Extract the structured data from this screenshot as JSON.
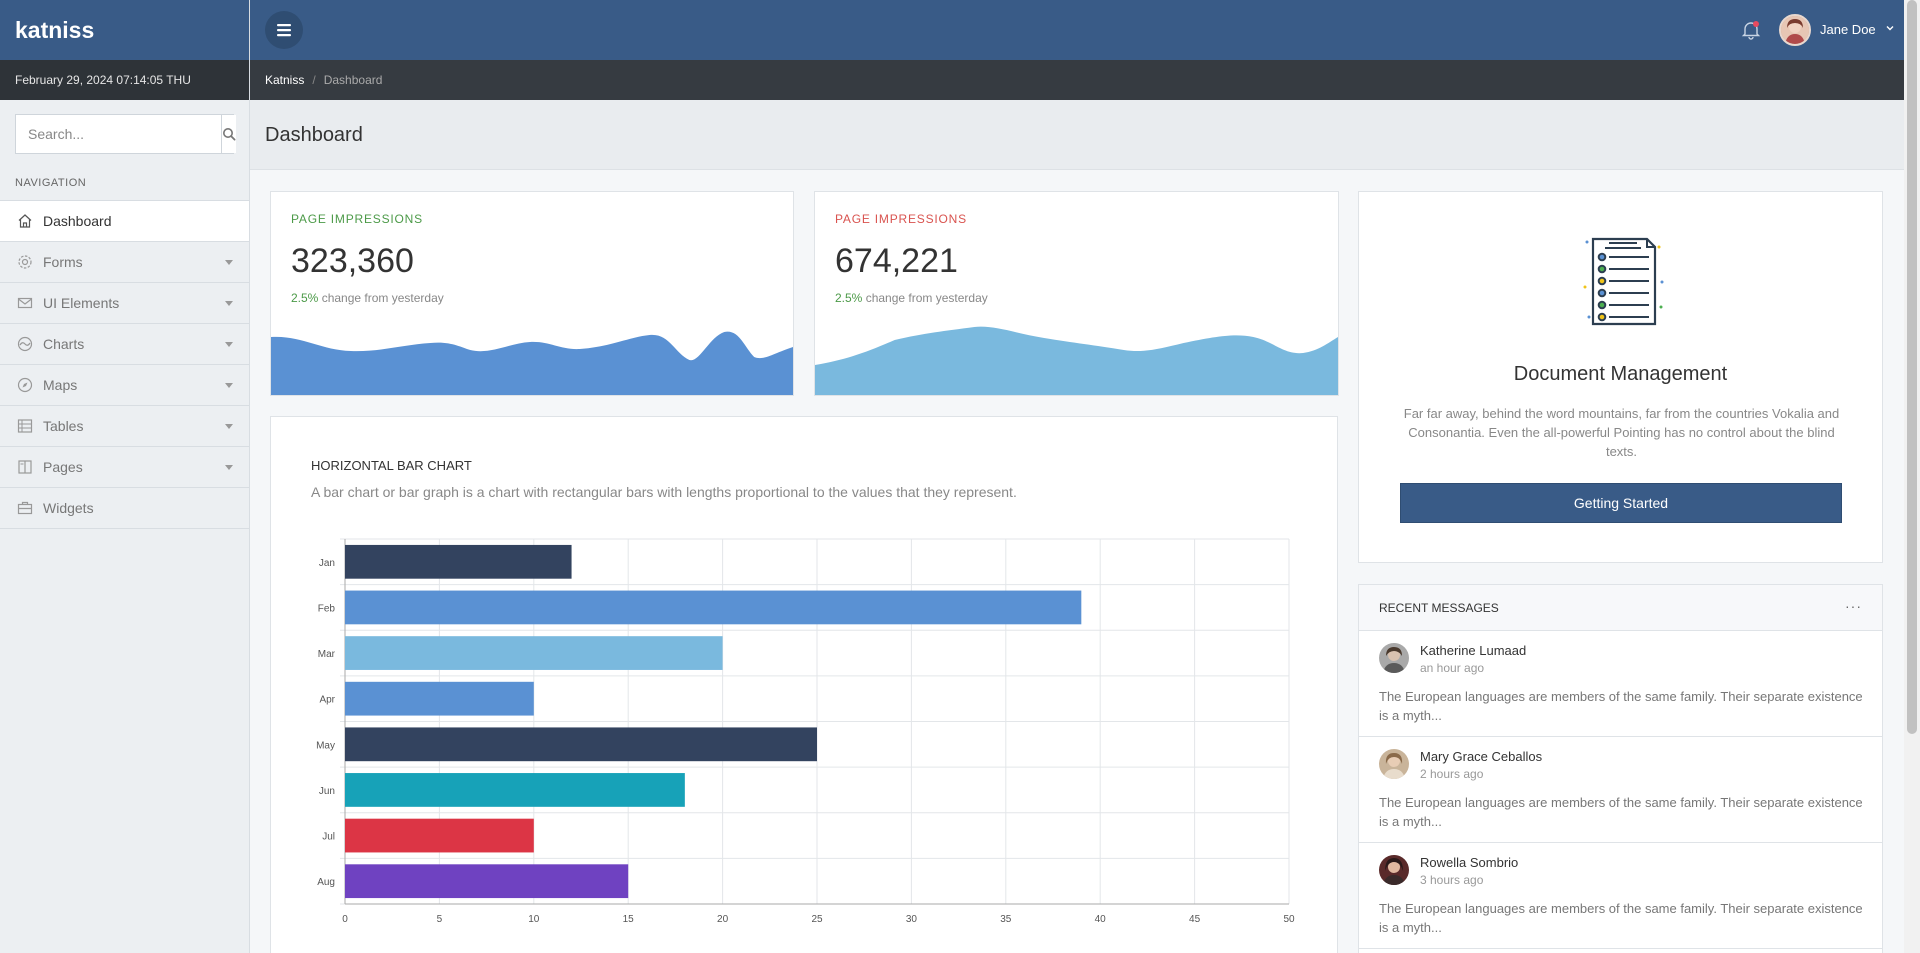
{
  "app": {
    "brand": "katniss",
    "datetime": "February 29, 2024 07:14:05 THU"
  },
  "header": {
    "user_name": "Jane Doe",
    "menu_icon": "hamburger-icon",
    "notification_icon": "bell-icon",
    "notification_dot_color": "#e84a5f"
  },
  "breadcrumb": {
    "home": "Katniss",
    "separator": "/",
    "current": "Dashboard"
  },
  "search": {
    "placeholder": "Search...",
    "icon": "search-icon"
  },
  "sidebar": {
    "heading": "NAVIGATION",
    "items": [
      {
        "label": "Dashboard",
        "icon": "home-icon",
        "active": true,
        "has_submenu": false
      },
      {
        "label": "Forms",
        "icon": "gear-icon",
        "active": false,
        "has_submenu": true
      },
      {
        "label": "UI Elements",
        "icon": "envelope-icon",
        "active": false,
        "has_submenu": true
      },
      {
        "label": "Charts",
        "icon": "wave-icon",
        "active": false,
        "has_submenu": true
      },
      {
        "label": "Maps",
        "icon": "compass-icon",
        "active": false,
        "has_submenu": true
      },
      {
        "label": "Tables",
        "icon": "table-icon",
        "active": false,
        "has_submenu": true
      },
      {
        "label": "Pages",
        "icon": "book-icon",
        "active": false,
        "has_submenu": true
      },
      {
        "label": "Widgets",
        "icon": "briefcase-icon",
        "active": false,
        "has_submenu": false
      }
    ]
  },
  "page": {
    "title": "Dashboard"
  },
  "stats": [
    {
      "label": "PAGE IMPRESSIONS",
      "value": "323,360",
      "change_pct": "2.5%",
      "change_text": "change from yesterday",
      "label_color": "#4c9a48",
      "fill_color": "#5a91d3"
    },
    {
      "label": "PAGE IMPRESSIONS",
      "value": "674,221",
      "change_pct": "2.5%",
      "change_text": "change from yesterday",
      "label_color": "#d9534f",
      "fill_color": "#7ab9de"
    }
  ],
  "bar_chart_card": {
    "title": "HORIZONTAL BAR CHART",
    "description": "A bar chart or bar graph is a chart with rectangular bars with lengths proportional to the values that they represent."
  },
  "chart_data": {
    "type": "bar",
    "orientation": "horizontal",
    "categories": [
      "Jan",
      "Feb",
      "Mar",
      "Apr",
      "May",
      "Jun",
      "Jul",
      "Aug"
    ],
    "values": [
      12,
      39,
      20,
      10,
      25,
      18,
      10,
      15
    ],
    "colors": [
      "#33435f",
      "#5a91d3",
      "#7ab9de",
      "#5a91d3",
      "#33435f",
      "#17a2b8",
      "#dc3545",
      "#6f42c1"
    ],
    "xlim": [
      0,
      50
    ],
    "xticks": [
      "0",
      "5",
      "10",
      "15",
      "20",
      "25",
      "30",
      "35",
      "40",
      "45",
      "50"
    ],
    "grid": true
  },
  "document_card": {
    "icon": "document-checklist-icon",
    "title": "Document Management",
    "text": "Far far away, behind the word mountains, far from the countries Vokalia and Consonantia. Even the all-powerful Pointing has no control about the blind texts.",
    "button": "Getting Started"
  },
  "messages": {
    "header": "RECENT MESSAGES",
    "more": "···",
    "items": [
      {
        "name": "Katherine Lumaad",
        "time": "an hour ago",
        "text": "The European languages are members of the same family. Their separate existence is a myth..."
      },
      {
        "name": "Mary Grace Ceballos",
        "time": "2 hours ago",
        "text": "The European languages are members of the same family. Their separate existence is a myth..."
      },
      {
        "name": "Rowella Sombrio",
        "time": "3 hours ago",
        "text": "The European languages are members of the same family. Their separate existence is a myth..."
      }
    ]
  }
}
